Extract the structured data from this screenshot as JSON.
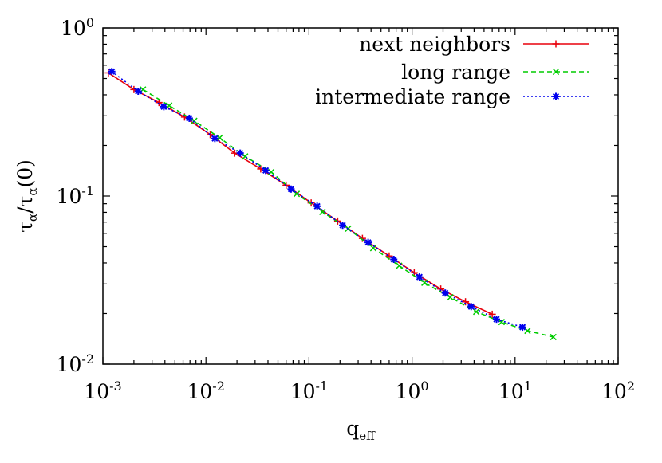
{
  "chart_data": {
    "type": "line",
    "title": "",
    "xlabel": {
      "main": "q",
      "sub": "eff"
    },
    "ylabel": {
      "main": "τ",
      "sub": "α",
      "sep": "/",
      "main2": "τ",
      "sub2": "α",
      "tail": "(0)"
    },
    "x_scale": "log",
    "y_scale": "log",
    "xlim": [
      0.001,
      100
    ],
    "ylim": [
      0.01,
      1
    ],
    "grid": false,
    "legend_position": "top-right",
    "x_ticks": [
      {
        "base": "10",
        "exp": "-3",
        "value": 0.001
      },
      {
        "base": "10",
        "exp": "-2",
        "value": 0.01
      },
      {
        "base": "10",
        "exp": "-1",
        "value": 0.1
      },
      {
        "base": "10",
        "exp": "0",
        "value": 1
      },
      {
        "base": "10",
        "exp": "1",
        "value": 10
      },
      {
        "base": "10",
        "exp": "2",
        "value": 100
      }
    ],
    "y_ticks": [
      {
        "base": "10",
        "exp": "-2",
        "value": 0.01
      },
      {
        "base": "10",
        "exp": "-1",
        "value": 0.1
      },
      {
        "base": "10",
        "exp": "0",
        "value": 1
      }
    ],
    "series": [
      {
        "name": "next neighbors",
        "color": "#e8000b",
        "dash": "solid",
        "marker": "plus",
        "points": [
          [
            0.00113,
            0.54
          ],
          [
            0.002,
            0.43
          ],
          [
            0.0035,
            0.36
          ],
          [
            0.0062,
            0.295
          ],
          [
            0.011,
            0.232
          ],
          [
            0.019,
            0.18
          ],
          [
            0.034,
            0.145
          ],
          [
            0.06,
            0.116
          ],
          [
            0.105,
            0.091
          ],
          [
            0.19,
            0.071
          ],
          [
            0.33,
            0.056
          ],
          [
            0.6,
            0.044
          ],
          [
            1.05,
            0.035
          ],
          [
            1.9,
            0.028
          ],
          [
            3.3,
            0.0235
          ],
          [
            6.0,
            0.0198
          ]
        ]
      },
      {
        "name": "long range",
        "color": "#00cc00",
        "dash": "dashed",
        "marker": "cross",
        "points": [
          [
            0.00245,
            0.43
          ],
          [
            0.0044,
            0.345
          ],
          [
            0.0077,
            0.28
          ],
          [
            0.0136,
            0.222
          ],
          [
            0.024,
            0.172
          ],
          [
            0.043,
            0.139
          ],
          [
            0.076,
            0.103
          ],
          [
            0.135,
            0.0805
          ],
          [
            0.24,
            0.064
          ],
          [
            0.42,
            0.049
          ],
          [
            0.75,
            0.0385
          ],
          [
            1.32,
            0.0305
          ],
          [
            2.35,
            0.025
          ],
          [
            4.2,
            0.0205
          ],
          [
            7.4,
            0.0178
          ],
          [
            13.2,
            0.0158
          ],
          [
            23.5,
            0.0145
          ]
        ]
      },
      {
        "name": "intermediate range",
        "color": "#0000ee",
        "dash": "dotted",
        "marker": "star",
        "points": [
          [
            0.00122,
            0.55
          ],
          [
            0.0022,
            0.42
          ],
          [
            0.0039,
            0.34
          ],
          [
            0.0069,
            0.29
          ],
          [
            0.0122,
            0.22
          ],
          [
            0.0215,
            0.18
          ],
          [
            0.038,
            0.142
          ],
          [
            0.067,
            0.11
          ],
          [
            0.12,
            0.087
          ],
          [
            0.212,
            0.067
          ],
          [
            0.375,
            0.053
          ],
          [
            0.665,
            0.042
          ],
          [
            1.18,
            0.033
          ],
          [
            2.1,
            0.0265
          ],
          [
            3.75,
            0.022
          ],
          [
            6.6,
            0.0185
          ],
          [
            11.8,
            0.0166
          ]
        ]
      }
    ]
  }
}
